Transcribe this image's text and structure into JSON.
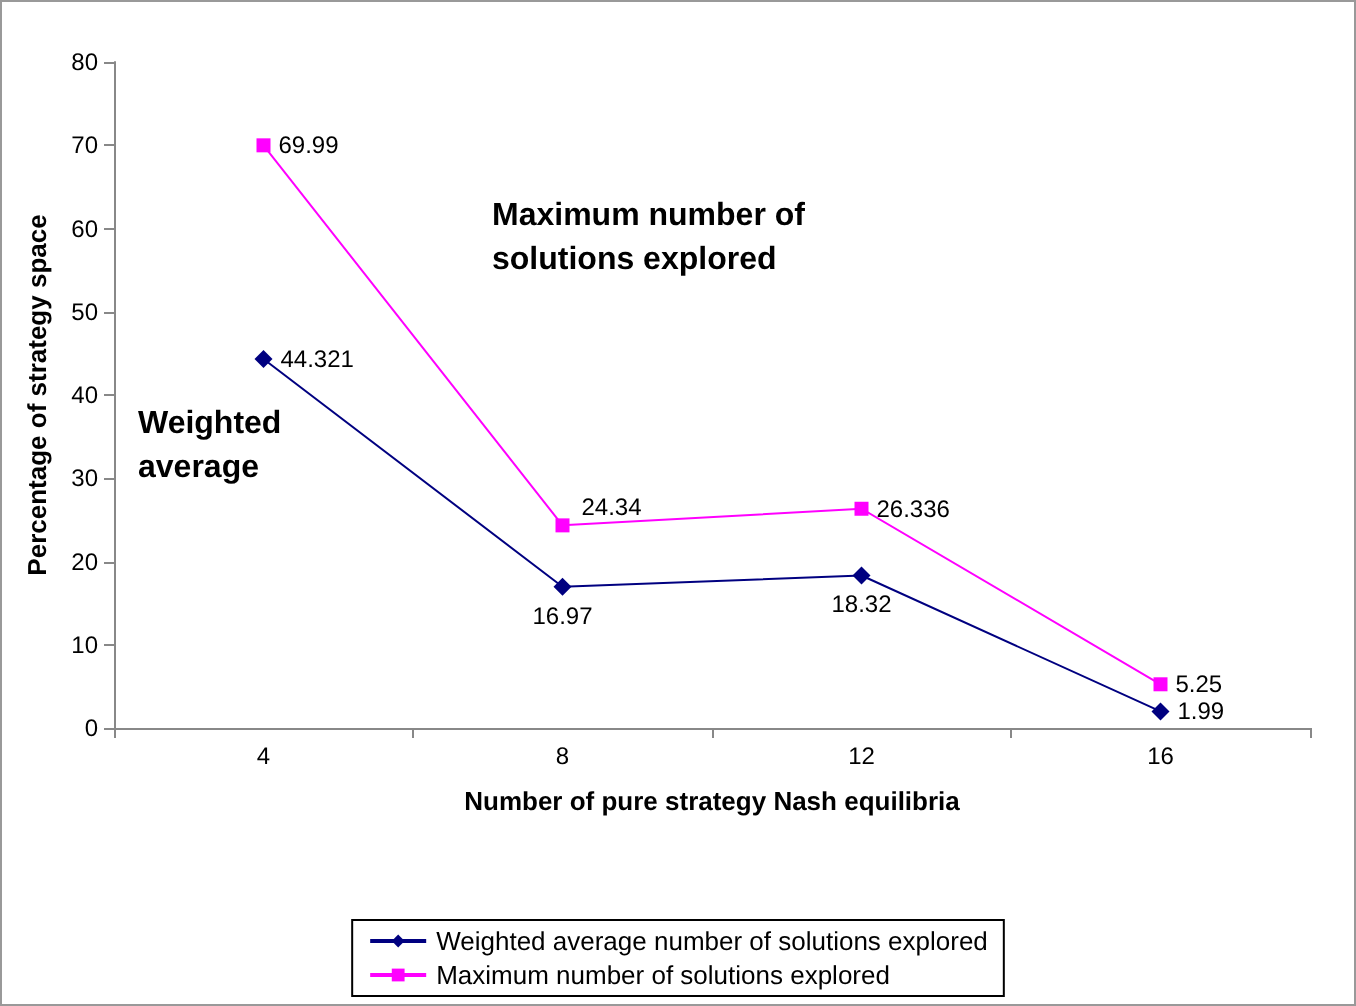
{
  "chart_data": {
    "type": "line",
    "xlabel": "Number of pure strategy Nash equilibria",
    "ylabel": "Percentage of strategy space",
    "categories": [
      "4",
      "8",
      "12",
      "16"
    ],
    "series": [
      {
        "name": "Weighted average number of solutions explored",
        "color": "#000080",
        "marker": "diamond",
        "values": [
          44.321,
          16.97,
          18.32,
          1.99
        ]
      },
      {
        "name": "Maximum number of solutions explored",
        "color": "#ff00ff",
        "marker": "square",
        "values": [
          69.99,
          24.34,
          26.336,
          5.25
        ]
      }
    ],
    "ylim": [
      0,
      80
    ],
    "yticks": [
      0,
      10,
      20,
      30,
      40,
      50,
      60,
      70,
      80
    ],
    "data_labels": true,
    "grid": false,
    "legend": "bottom",
    "line_style": "solid",
    "annotations": [
      "Maximum number of solutions explored",
      "Weighted average"
    ]
  }
}
